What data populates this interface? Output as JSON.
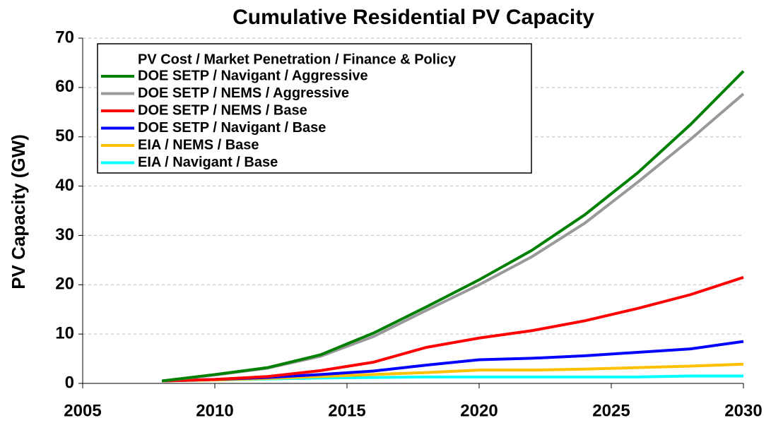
{
  "chart_data": {
    "type": "line",
    "title": "Cumulative Residential PV Capacity",
    "y_label": "PV Capacity (GW)",
    "legend_title": "PV Cost / Market Penetration / Finance & Policy",
    "legend_position": "upper left",
    "grid": true,
    "x": [
      2008,
      2010,
      2012,
      2014,
      2016,
      2018,
      2020,
      2022,
      2024,
      2026,
      2028,
      2030
    ],
    "xlim": [
      2005,
      2030
    ],
    "xticks": [
      2005,
      2010,
      2015,
      2020,
      2025,
      2030
    ],
    "ylim": [
      0,
      70
    ],
    "yticks": [
      0,
      10,
      20,
      30,
      40,
      50,
      60,
      70
    ],
    "series": [
      {
        "name": "DOE SETP / Navigant / Aggressive",
        "color": "#008000",
        "values": [
          0.5,
          1.8,
          3.2,
          5.8,
          10.2,
          15.5,
          21,
          27,
          34.2,
          42.7,
          52.5,
          63.3
        ]
      },
      {
        "name": "DOE SETP / NEMS / Aggressive",
        "color": "#999999",
        "values": [
          0.5,
          1.7,
          3.1,
          5.5,
          9.5,
          14.8,
          20,
          25.7,
          32.5,
          40.8,
          49.5,
          58.7
        ]
      },
      {
        "name": "DOE SETP / NEMS / Base",
        "color": "#ff0000",
        "values": [
          0.5,
          0.8,
          1.4,
          2.6,
          4.3,
          7.3,
          9.2,
          10.7,
          12.7,
          15.2,
          18,
          21.5
        ]
      },
      {
        "name": "DOE SETP / Navigant / Base",
        "color": "#0000ff",
        "values": [
          0.5,
          0.8,
          1.2,
          1.8,
          2.5,
          3.7,
          4.8,
          5.1,
          5.6,
          6.3,
          7.0,
          8.5
        ]
      },
      {
        "name": "EIA / NEMS / Base",
        "color": "#ffc000",
        "values": [
          0.5,
          0.7,
          1.0,
          1.4,
          1.8,
          2.2,
          2.7,
          2.7,
          2.9,
          3.2,
          3.5,
          3.9
        ]
      },
      {
        "name": "EIA / Navigant / Base",
        "color": "#00ffff",
        "values": [
          0.5,
          0.7,
          0.9,
          1.1,
          1.2,
          1.3,
          1.3,
          1.3,
          1.3,
          1.3,
          1.5,
          1.5
        ]
      }
    ]
  }
}
